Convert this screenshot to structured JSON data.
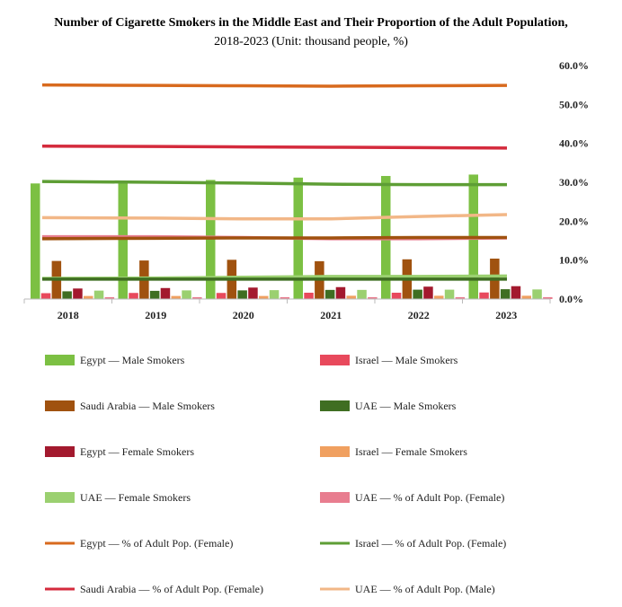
{
  "chart_data": {
    "type": "bar+line",
    "title": "Number of Cigarette Smokers in the Middle East and Their Proportion of the Adult Population,",
    "subtitle": "2018-2023 (Unit: thousand people, %)",
    "categories": [
      "2018",
      "2019",
      "2020",
      "2021",
      "2022",
      "2023"
    ],
    "ylim_left": [
      0,
      100
    ],
    "y_right_ticks": [
      "0.0%",
      "10.0%",
      "20.0%",
      "30.0%",
      "40.0%",
      "50.0%",
      "60.0%"
    ],
    "ylim_right": [
      0,
      60
    ],
    "grid": false,
    "legend_position": "bottom",
    "bar_series": [
      {
        "name": "Egypt — Male Smokers",
        "color": "#7cc043",
        "values": [
          49.5,
          50.2,
          51.0,
          52.0,
          52.7,
          53.3
        ]
      },
      {
        "name": "Israel — Male Smokers",
        "color": "#e8495c",
        "values": [
          2.5,
          2.6,
          2.6,
          2.7,
          2.7,
          2.8
        ]
      },
      {
        "name": "Saudi Arabia — Male Smokers",
        "color": "#a0520f",
        "values": [
          16.3,
          16.5,
          16.8,
          16.2,
          17.0,
          17.3
        ]
      },
      {
        "name": "UAE — Male Smokers",
        "color": "#3f6e22",
        "values": [
          3.3,
          3.5,
          3.7,
          3.9,
          4.0,
          4.2
        ]
      },
      {
        "name": "Egypt — Female Smokers",
        "color": "#a3192e",
        "values": [
          4.5,
          4.7,
          4.9,
          5.1,
          5.3,
          5.5
        ]
      },
      {
        "name": "Israel — Female Smokers",
        "color": "#f0a060",
        "values": [
          1.3,
          1.3,
          1.3,
          1.4,
          1.4,
          1.4
        ]
      },
      {
        "name": "UAE — Female Smokers",
        "color": "#9bd070",
        "values": [
          3.6,
          3.7,
          3.8,
          3.9,
          4.0,
          4.1
        ]
      },
      {
        "name": "UAE — % of Adult Pop. (Female)",
        "color": "#e87d8f",
        "values": [
          0.8,
          0.8,
          0.8,
          0.8,
          0.8,
          0.8
        ]
      }
    ],
    "line_series": [
      {
        "name": "Egypt — % of Adult Pop. (Female)",
        "color": "#d86a1e",
        "values": [
          55.0,
          54.9,
          54.8,
          54.7,
          54.8,
          54.9
        ]
      },
      {
        "name": "Israel — % of Adult Pop. (Female)",
        "color": "#5e9e35",
        "values": [
          30.2,
          30.0,
          29.8,
          29.5,
          29.4,
          29.4
        ]
      },
      {
        "name": "Saudi Arabia — % of Adult Pop. (Female)",
        "color": "#d42a3c",
        "values": [
          39.3,
          39.2,
          39.1,
          39.0,
          38.9,
          38.8
        ]
      },
      {
        "name": "UAE — % of Adult Pop. (Male)",
        "color": "#f2b787",
        "values": [
          20.9,
          20.8,
          20.6,
          20.6,
          21.2,
          21.7
        ]
      }
    ],
    "extra_lines": [
      {
        "color": "#e87d8f",
        "values": [
          16.0,
          16.0,
          15.8,
          15.5,
          15.5,
          15.7
        ]
      },
      {
        "color": "#a0520f",
        "values": [
          15.5,
          15.6,
          15.7,
          15.7,
          15.8,
          15.8
        ]
      },
      {
        "color": "#9bd070",
        "values": [
          5.3,
          5.4,
          5.6,
          5.8,
          5.8,
          5.9
        ]
      },
      {
        "color": "#3f6e22",
        "values": [
          5.1,
          5.1,
          5.1,
          5.1,
          5.1,
          5.1
        ]
      }
    ]
  }
}
